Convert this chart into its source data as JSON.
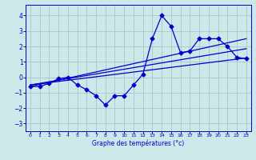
{
  "xlabel": "Graphe des températures (°c)",
  "background_color": "#cce8e8",
  "grid_color": "#aacccc",
  "line_color": "#0000cc",
  "x_ticks": [
    0,
    1,
    2,
    3,
    4,
    5,
    6,
    7,
    8,
    9,
    10,
    11,
    12,
    13,
    14,
    15,
    16,
    17,
    18,
    19,
    20,
    21,
    22,
    23
  ],
  "xlim": [
    -0.5,
    23.5
  ],
  "ylim": [
    -3.5,
    4.7
  ],
  "yticks": [
    -3,
    -2,
    -1,
    0,
    1,
    2,
    3,
    4
  ],
  "main_series": {
    "x": [
      0,
      1,
      2,
      3,
      4,
      5,
      6,
      7,
      8,
      9,
      10,
      11,
      12,
      13,
      14,
      15,
      16,
      17,
      18,
      19,
      20,
      21,
      22,
      23
    ],
    "y": [
      -0.6,
      -0.6,
      -0.4,
      -0.1,
      0.0,
      -0.5,
      -0.8,
      -1.2,
      -1.8,
      -1.2,
      -1.2,
      -0.5,
      0.2,
      2.5,
      4.0,
      3.3,
      1.6,
      1.7,
      2.5,
      2.5,
      2.5,
      2.0,
      1.3,
      1.2
    ]
  },
  "reg_lines": [
    {
      "x": [
        0,
        23
      ],
      "y": [
        -0.6,
        2.5
      ]
    },
    {
      "x": [
        0,
        23
      ],
      "y": [
        -0.5,
        1.85
      ]
    },
    {
      "x": [
        0,
        23
      ],
      "y": [
        -0.5,
        1.25
      ]
    }
  ]
}
